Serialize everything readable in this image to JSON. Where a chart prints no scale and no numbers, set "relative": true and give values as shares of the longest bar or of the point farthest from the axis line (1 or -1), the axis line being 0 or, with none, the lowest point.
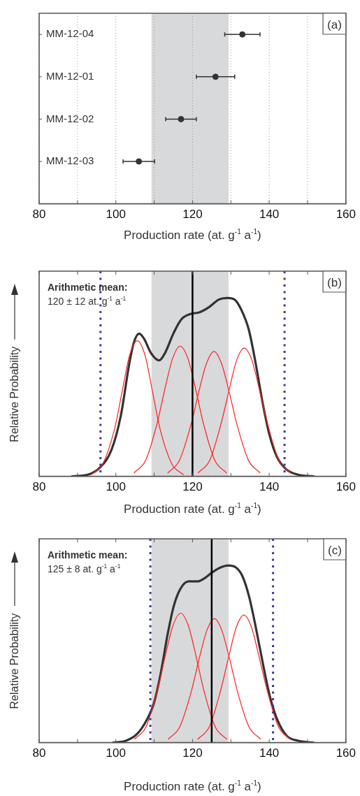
{
  "chart_data": [
    {
      "type": "scatter",
      "orientation": "horizontal",
      "xlabel": "Production rate (at. g$^{-1}$ a$^{-1}$)",
      "annotations": [
        "(a)"
      ],
      "categories": [
        "MM-12-04",
        "MM-12-01",
        "MM-12-02",
        "MM-12-03"
      ],
      "values": [
        133,
        126,
        117,
        106
      ],
      "errors": [
        4.6,
        5,
        4,
        4.1
      ],
      "color": "#333333",
      "marker": "circle",
      "xlim": [
        80,
        160
      ],
      "xticks": [
        80,
        {
          "value": 90,
          "label": null
        },
        100,
        {
          "value": 110,
          "label": null
        },
        120,
        {
          "value": 130,
          "label": null
        },
        140,
        {
          "value": 150,
          "label": null
        },
        160
      ],
      "grid": "x",
      "bands": [
        {
          "axis": "x",
          "from": 109.3,
          "to": 129.4,
          "color": "#d8d9db"
        }
      ]
    },
    {
      "type": "line",
      "relative": true,
      "xlabel": "Production rate (at. g$^{-1}$ a$^{-1}$)",
      "ylabel": "Relative Probability",
      "annotations": [
        "(b)",
        "Arithmetic mean:",
        "120 ± 12 at. g$^{-1}$ a$^{-1}$"
      ],
      "series": [
        {
          "color": "#333333",
          "x": [
            88.6,
            92.8,
            95.9,
            98.9,
            101.3,
            103.5,
            104.7,
            106.1,
            107.4,
            109.2,
            111.3,
            112.8,
            115.0,
            117.1,
            119.5,
            121.9,
            124.4,
            126.8,
            129.2,
            131.0,
            132.8,
            134.7,
            136.5,
            138.3,
            140.1,
            142.0,
            144.4,
            147.4,
            151.6
          ],
          "values": [
            0,
            0.01,
            0.05,
            0.15,
            0.34,
            0.63,
            0.75,
            0.8,
            0.77,
            0.69,
            0.65,
            0.69,
            0.8,
            0.88,
            0.91,
            0.92,
            0.95,
            0.99,
            1,
            0.99,
            0.93,
            0.82,
            0.63,
            0.41,
            0.23,
            0.11,
            0.04,
            0.01,
            0
          ]
        },
        {
          "color": "#ff2020",
          "x": [
            93.6,
            96.6,
            99.6,
            101.6,
            103.6,
            105.6,
            107.6,
            109.6,
            111.6,
            114.6,
            117.6
          ],
          "values": [
            0.01,
            0.07,
            0.26,
            0.47,
            0.68,
            0.76,
            0.68,
            0.47,
            0.26,
            0.07,
            0.01
          ]
        },
        {
          "color": "#ff2020",
          "x": [
            104.8,
            107.8,
            110.8,
            112.8,
            114.8,
            116.8,
            118.8,
            120.8,
            122.8,
            125.8,
            128.8
          ],
          "values": [
            0.02,
            0.09,
            0.3,
            0.49,
            0.66,
            0.73,
            0.66,
            0.49,
            0.3,
            0.09,
            0.02
          ]
        },
        {
          "color": "#ff2020",
          "x": [
            113.6,
            116.6,
            119.6,
            121.6,
            123.6,
            125.6,
            127.6,
            129.6,
            131.6,
            134.6,
            137.6
          ],
          "values": [
            0.02,
            0.09,
            0.29,
            0.47,
            0.63,
            0.7,
            0.63,
            0.47,
            0.29,
            0.09,
            0.02
          ]
        },
        {
          "color": "#ff2020",
          "x": [
            121.5,
            124.5,
            127.5,
            129.5,
            131.5,
            133.5,
            135.5,
            137.5,
            139.5,
            142.5,
            145.5
          ],
          "values": [
            0.02,
            0.09,
            0.3,
            0.48,
            0.65,
            0.72,
            0.65,
            0.48,
            0.3,
            0.09,
            0.02
          ]
        }
      ],
      "xlim": [
        80,
        160
      ],
      "xticks": [
        80,
        {
          "value": 90,
          "label": null
        },
        100,
        {
          "value": 110,
          "label": null
        },
        120,
        {
          "value": 130,
          "label": null
        },
        140,
        {
          "value": 150,
          "label": null
        },
        160
      ],
      "bands": [
        {
          "axis": "x",
          "from": 109.3,
          "to": 129.4,
          "color": "#d8d9db"
        }
      ],
      "ref_lines": [
        {
          "axis": "x",
          "value": 120,
          "color": "#000000",
          "line_style": "solid"
        },
        {
          "axis": "x",
          "value": 96,
          "color": "#3a3a9a",
          "line_style": "dotted"
        },
        {
          "axis": "x",
          "value": 144,
          "color": "#3a3a9a",
          "line_style": "dotted"
        }
      ]
    },
    {
      "type": "line",
      "relative": true,
      "xlabel": "Production rate (at. g$^{-1}$ a$^{-1}$)",
      "ylabel": "Relative Probability",
      "annotations": [
        "(c)",
        "Arithmetic mean:",
        "125 ± 8 at. g$^{-1}$ a$^{-1}$"
      ],
      "series": [
        {
          "color": "#333333",
          "x": [
            99.3,
            102.6,
            105.6,
            108.1,
            109.9,
            111.7,
            113.5,
            115.1,
            116.9,
            119.0,
            121.4,
            123.3,
            125.1,
            127.5,
            129.3,
            131.2,
            133.0,
            134.8,
            136.6,
            138.5,
            140.3,
            142.1,
            144.5,
            147.6,
            151.5
          ],
          "values": [
            0,
            0.01,
            0.05,
            0.13,
            0.22,
            0.39,
            0.61,
            0.77,
            0.87,
            0.91,
            0.91,
            0.93,
            0.96,
            0.99,
            1,
            0.99,
            0.94,
            0.82,
            0.64,
            0.43,
            0.25,
            0.13,
            0.04,
            0.01,
            0
          ]
        },
        {
          "color": "#ff2020",
          "x": [
            104.9,
            107.9,
            110.9,
            112.9,
            114.9,
            116.9,
            118.9,
            120.9,
            122.9,
            125.9,
            128.9
          ],
          "values": [
            0.02,
            0.09,
            0.3,
            0.49,
            0.66,
            0.73,
            0.66,
            0.49,
            0.3,
            0.09,
            0.02
          ]
        },
        {
          "color": "#ff2020",
          "x": [
            113.7,
            116.7,
            119.7,
            121.7,
            123.7,
            125.7,
            127.7,
            129.7,
            131.7,
            134.7,
            137.7
          ],
          "values": [
            0.02,
            0.09,
            0.29,
            0.47,
            0.63,
            0.7,
            0.63,
            0.47,
            0.29,
            0.09,
            0.02
          ]
        },
        {
          "color": "#ff2020",
          "x": [
            121.4,
            124.4,
            127.4,
            129.4,
            131.4,
            133.4,
            135.4,
            137.4,
            139.4,
            142.4,
            145.4
          ],
          "values": [
            0.02,
            0.09,
            0.3,
            0.48,
            0.65,
            0.72,
            0.65,
            0.48,
            0.3,
            0.09,
            0.02
          ]
        }
      ],
      "xlim": [
        80,
        160
      ],
      "xticks": [
        80,
        {
          "value": 90,
          "label": null
        },
        100,
        {
          "value": 110,
          "label": null
        },
        120,
        {
          "value": 130,
          "label": null
        },
        140,
        {
          "value": 150,
          "label": null
        },
        160
      ],
      "bands": [
        {
          "axis": "x",
          "from": 109.3,
          "to": 129.4,
          "color": "#d8d9db"
        }
      ],
      "ref_lines": [
        {
          "axis": "x",
          "value": 125,
          "color": "#000000",
          "line_style": "solid"
        },
        {
          "axis": "x",
          "value": 109,
          "color": "#3a3a9a",
          "line_style": "dotted"
        },
        {
          "axis": "x",
          "value": 141,
          "color": "#3a3a9a",
          "line_style": "dotted"
        }
      ]
    }
  ]
}
